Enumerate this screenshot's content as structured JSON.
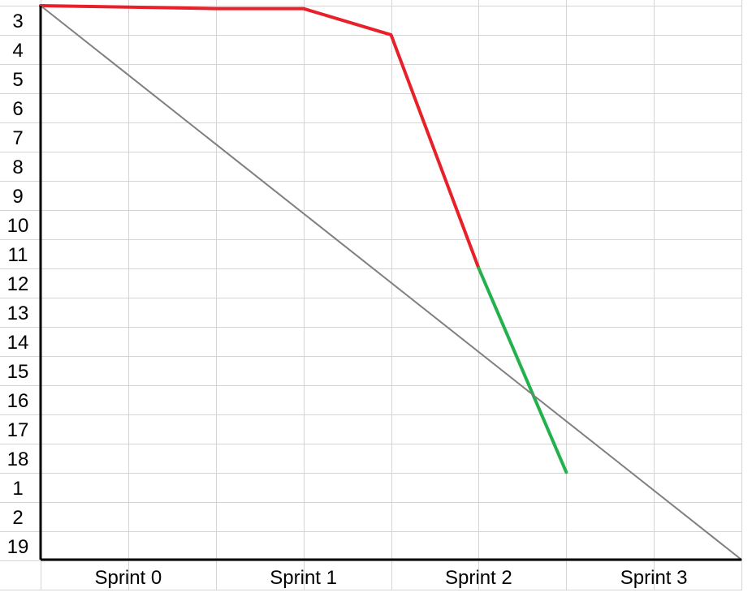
{
  "chart_data": {
    "type": "line",
    "title": "",
    "xlabel": "",
    "ylabel": "",
    "sprint_labels": [
      "Sprint 0",
      "Sprint 1",
      "Sprint 2",
      "Sprint 3"
    ],
    "row_labels": [
      "3",
      "4",
      "5",
      "6",
      "7",
      "8",
      "9",
      "10",
      "11",
      "12",
      "13",
      "14",
      "15",
      "16",
      "17",
      "18",
      "1",
      "2",
      "19"
    ],
    "x_range": [
      0,
      8
    ],
    "y_range": [
      0,
      19
    ],
    "grid": true,
    "series": [
      {
        "color": "#e8202a",
        "points": [
          {
            "x": 0,
            "y": 0
          },
          {
            "x": 1,
            "y": 0.05
          },
          {
            "x": 2,
            "y": 0.1
          },
          {
            "x": 3,
            "y": 0.1
          },
          {
            "x": 4,
            "y": 1
          },
          {
            "x": 5,
            "y": 9
          }
        ]
      },
      {
        "color": "#22b14c",
        "points": [
          {
            "x": 5,
            "y": 9
          },
          {
            "x": 6,
            "y": 16
          }
        ]
      },
      {
        "color": "#7f7f7f",
        "points": [
          {
            "x": 0,
            "y": 0
          },
          {
            "x": 8,
            "y": 19
          }
        ]
      }
    ]
  }
}
